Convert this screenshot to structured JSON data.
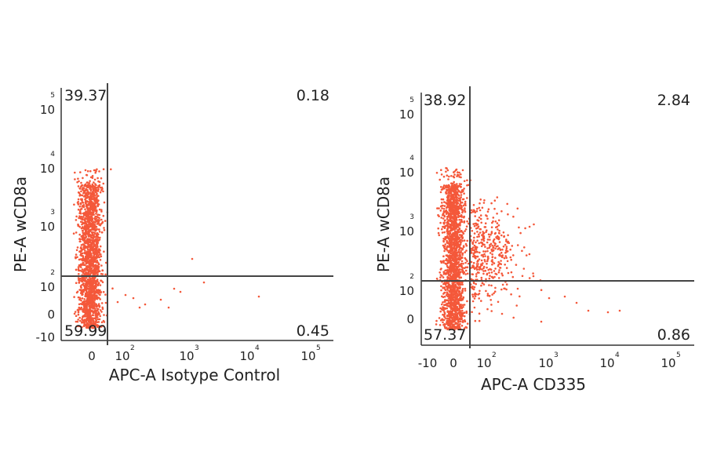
{
  "chart_data": [
    {
      "type": "scatter",
      "xlabel": "APC-A Isotype Control",
      "ylabel": "PE-A wCD8a",
      "x_scale": "biexponential",
      "y_scale": "biexponential",
      "xlim": [
        -10,
        100000
      ],
      "ylim": [
        -10,
        100000
      ],
      "x_ticks": [
        {
          "base": "0",
          "exp": ""
        },
        {
          "base": "10",
          "exp": "2"
        },
        {
          "base": "10",
          "exp": "3"
        },
        {
          "base": "10",
          "exp": "4"
        },
        {
          "base": "10",
          "exp": "5"
        }
      ],
      "y_ticks": [
        {
          "base": "-10",
          "exp": ""
        },
        {
          "base": "0",
          "exp": ""
        },
        {
          "base": "10",
          "exp": "2"
        },
        {
          "base": "10",
          "exp": "3"
        },
        {
          "base": "10",
          "exp": "4"
        },
        {
          "base": "10",
          "exp": "5"
        }
      ],
      "gate": {
        "x": 110,
        "y": 60
      },
      "quadrants": {
        "upper_left": "39.37",
        "upper_right": "0.18",
        "lower_left": "59.99",
        "lower_right": "0.45"
      },
      "point_color": "#f4583a",
      "points_note": "dense population at x≈0 spanning y≈-10 to 2000; few scattered events x 100–10000 near y≈30"
    },
    {
      "type": "scatter",
      "xlabel": "APC-A CD335",
      "ylabel": "PE-A wCD8a",
      "x_scale": "biexponential",
      "y_scale": "biexponential",
      "xlim": [
        -10,
        100000
      ],
      "ylim": [
        -10,
        100000
      ],
      "x_ticks": [
        {
          "base": "-10",
          "exp": ""
        },
        {
          "base": "0",
          "exp": ""
        },
        {
          "base": "10",
          "exp": "2"
        },
        {
          "base": "10",
          "exp": "3"
        },
        {
          "base": "10",
          "exp": "4"
        },
        {
          "base": "10",
          "exp": "5"
        }
      ],
      "y_ticks": [
        {
          "base": "0",
          "exp": ""
        },
        {
          "base": "10",
          "exp": "2"
        },
        {
          "base": "10",
          "exp": "3"
        },
        {
          "base": "10",
          "exp": "4"
        },
        {
          "base": "10",
          "exp": "5"
        }
      ],
      "gate": {
        "x": 100,
        "y": 60
      },
      "quadrants": {
        "upper_left": "38.92",
        "upper_right": "2.84",
        "lower_left": "57.37",
        "lower_right": "0.86"
      },
      "point_color": "#f4583a",
      "points_note": "dense population at x≈0 spanning y≈-10 to 2000; positive tail x 100–3000, y 20–300"
    }
  ]
}
